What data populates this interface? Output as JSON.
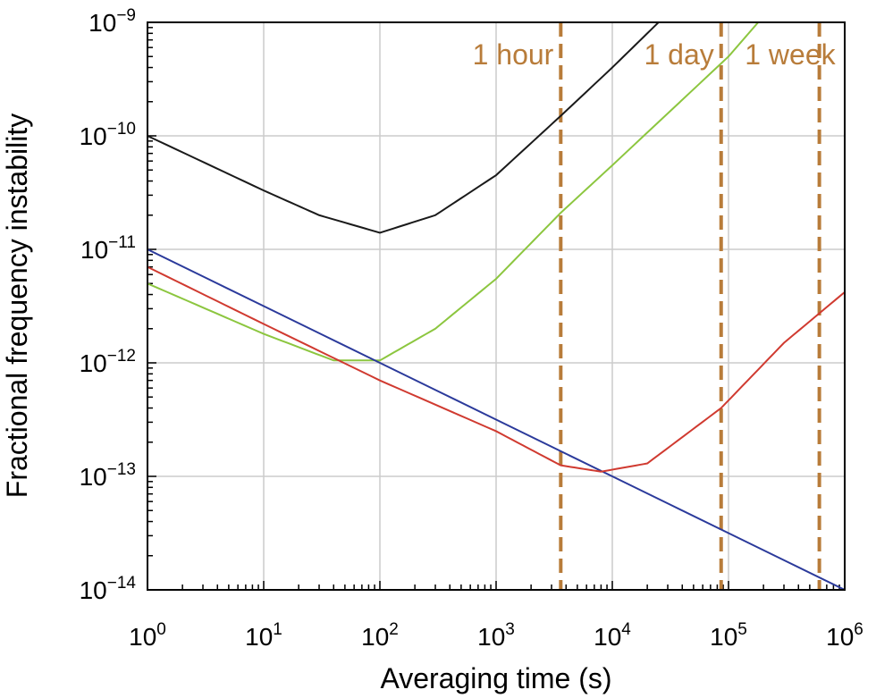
{
  "chart_data": {
    "type": "line",
    "title": "",
    "xlabel": "Averaging time (s)",
    "ylabel": "Fractional frequency instability",
    "xscale": "log",
    "yscale": "log",
    "xlim": [
      1,
      1000000
    ],
    "ylim": [
      1e-14,
      1e-09
    ],
    "grid": true,
    "x_ticks": [
      {
        "base": "10",
        "exp": "0"
      },
      {
        "base": "10",
        "exp": "1"
      },
      {
        "base": "10",
        "exp": "2"
      },
      {
        "base": "10",
        "exp": "3"
      },
      {
        "base": "10",
        "exp": "4"
      },
      {
        "base": "10",
        "exp": "5"
      },
      {
        "base": "10",
        "exp": "6"
      }
    ],
    "y_ticks": [
      {
        "base": "10",
        "exp": "−14"
      },
      {
        "base": "10",
        "exp": "−13"
      },
      {
        "base": "10",
        "exp": "−12"
      },
      {
        "base": "10",
        "exp": "−11"
      },
      {
        "base": "10",
        "exp": "−10"
      },
      {
        "base": "10",
        "exp": "−9"
      }
    ],
    "series": [
      {
        "color": "#1a1a1a",
        "x": [
          1,
          10,
          30,
          100,
          300,
          1000,
          3600,
          10000,
          25000
        ],
        "y": [
          1e-10,
          3.3e-11,
          2e-11,
          1.4e-11,
          2e-11,
          4.5e-11,
          1.5e-10,
          4e-10,
          1e-09
        ]
      },
      {
        "color": "#8cc63f",
        "x": [
          1,
          10,
          40,
          100,
          300,
          1000,
          3600,
          10000,
          100000,
          180000
        ],
        "y": [
          5e-12,
          1.8e-12,
          1.05e-12,
          1.05e-12,
          2e-12,
          5.5e-12,
          2.1e-11,
          5.5e-11,
          5e-10,
          1e-09
        ]
      },
      {
        "color": "#2b3a9b",
        "x": [
          1,
          1000000
        ],
        "y": [
          1e-11,
          1e-14
        ]
      },
      {
        "color": "#d03a30",
        "x": [
          1,
          10,
          100,
          1000,
          3600,
          8000,
          20000,
          86400,
          300000,
          1000000
        ],
        "y": [
          7e-12,
          2.2e-12,
          7e-13,
          2.5e-13,
          1.25e-13,
          1.1e-13,
          1.3e-13,
          4e-13,
          1.5e-12,
          4.2e-12
        ]
      }
    ],
    "annotations": [
      {
        "label": "1 hour",
        "x": 3600
      },
      {
        "label": "1 day",
        "x": 86400
      },
      {
        "label": "1 week",
        "x": 604800
      }
    ],
    "annotation_color": "#b87c3a"
  }
}
